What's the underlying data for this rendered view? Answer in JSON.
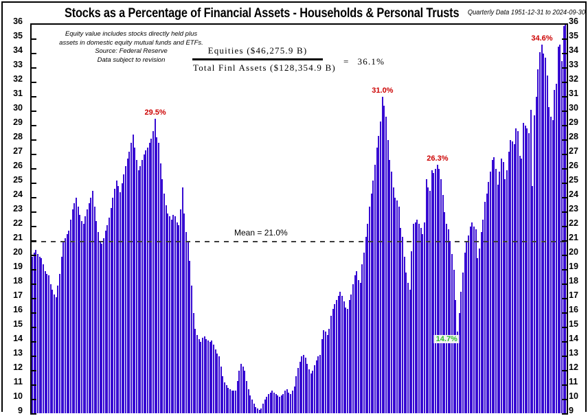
{
  "header": {
    "title": "Stocks as a Percentage of Financial Assets - Households & Personal Trusts",
    "range_note": "Quarterly Data 1951-12-31 to 2024-09-30"
  },
  "notes": {
    "lines": [
      "Equity value includes stocks directly held plus",
      "assets in domestic equity mutual funds and ETFs.",
      "Source: Federal Reserve",
      "Data subject to revision"
    ]
  },
  "formula": {
    "numerator": "Equities ($46,275.9 B)",
    "denominator": "Total Finl Assets ($128,354.9 B)",
    "equals": "=",
    "result": "36.1%"
  },
  "chart_data": {
    "type": "bar",
    "title": "Stocks as a Percentage of Financial Assets - Households & Personal Trusts",
    "frequency": "quarterly",
    "x_start": "1951-12-31",
    "x_end": "2024-09-30",
    "ylim": [
      9,
      36
    ],
    "grid": false,
    "bar_color": "#370bd2",
    "y_ticks": [
      36,
      35,
      34,
      33,
      32,
      31,
      30,
      29,
      28,
      27,
      26,
      25,
      24,
      23,
      22,
      21,
      20,
      19,
      18,
      17,
      16,
      15,
      14,
      13,
      12,
      11,
      10,
      9
    ],
    "mean_line": {
      "value": 21.0,
      "label": "Mean = 21.0%"
    },
    "annotations": [
      {
        "index": 67,
        "value": 29.5,
        "label": "29.5%",
        "color": "#cc0000",
        "placement": "above",
        "boxed": false
      },
      {
        "index": 191,
        "value": 31.0,
        "label": "31.0%",
        "color": "#cc0000",
        "placement": "above",
        "boxed": false
      },
      {
        "index": 221,
        "value": 26.3,
        "label": "26.3%",
        "color": "#cc0000",
        "placement": "above",
        "boxed": false
      },
      {
        "index": 278,
        "value": 34.6,
        "label": "34.6%",
        "color": "#cc0000",
        "placement": "above",
        "boxed": false
      },
      {
        "index": 232,
        "value": 14.7,
        "label": "14.7%",
        "color": "#2db82d",
        "placement": "below",
        "boxed": true
      }
    ],
    "values": [
      19.9,
      20.2,
      20.4,
      20.1,
      19.9,
      19.8,
      19.4,
      18.9,
      18.7,
      18.6,
      18.0,
      17.6,
      17.3,
      17.1,
      17.9,
      18.7,
      19.9,
      21.0,
      21.2,
      21.5,
      21.7,
      22.5,
      23.2,
      23.6,
      24.0,
      23.4,
      22.8,
      22.4,
      22.2,
      22.7,
      23.2,
      23.6,
      24.0,
      24.5,
      23.4,
      22.4,
      21.6,
      21.0,
      20.8,
      21.2,
      21.7,
      22.1,
      22.6,
      23.3,
      24.0,
      24.6,
      25.2,
      24.8,
      24.4,
      25.0,
      25.6,
      26.2,
      26.7,
      27.2,
      27.8,
      28.4,
      27.5,
      26.6,
      25.9,
      26.2,
      26.6,
      27.0,
      27.3,
      27.5,
      27.8,
      28.1,
      28.6,
      29.5,
      28.2,
      27.8,
      26.4,
      25.3,
      24.3,
      23.5,
      22.9,
      22.7,
      22.5,
      22.8,
      22.7,
      22.3,
      22.1,
      23.2,
      24.7,
      22.9,
      21.6,
      21.0,
      19.6,
      17.9,
      16.0,
      14.9,
      14.5,
      14.2,
      14.0,
      14.3,
      14.4,
      14.2,
      14.1,
      14.0,
      14.1,
      13.8,
      13.5,
      13.2,
      13.0,
      12.3,
      11.6,
      11.2,
      11.0,
      10.8,
      10.7,
      10.6,
      10.6,
      10.6,
      11.3,
      12.0,
      12.5,
      12.3,
      12.0,
      11.3,
      10.7,
      10.3,
      10.0,
      9.7,
      9.5,
      9.4,
      9.3,
      9.4,
      9.7,
      10.0,
      10.2,
      10.4,
      10.5,
      10.6,
      10.5,
      10.4,
      10.3,
      10.2,
      10.3,
      10.4,
      10.6,
      10.7,
      10.5,
      10.4,
      10.6,
      10.9,
      11.6,
      12.2,
      12.6,
      13.0,
      13.1,
      12.9,
      12.5,
      12.1,
      11.8,
      12.0,
      12.4,
      12.7,
      13.0,
      13.1,
      14.2,
      14.8,
      14.7,
      14.5,
      14.9,
      15.8,
      16.3,
      16.6,
      16.9,
      17.2,
      17.5,
      17.2,
      16.8,
      16.4,
      16.3,
      16.9,
      17.3,
      18.0,
      18.6,
      18.9,
      18.3,
      18.1,
      19.4,
      20.2,
      21.3,
      22.2,
      23.4,
      24.3,
      25.2,
      26.3,
      27.5,
      28.3,
      29.3,
      31.0,
      30.4,
      29.6,
      28.0,
      26.6,
      25.8,
      24.7,
      24.0,
      23.8,
      23.4,
      21.9,
      21.3,
      19.9,
      18.8,
      18.1,
      17.6,
      20.3,
      22.2,
      22.3,
      22.5,
      22.2,
      21.9,
      21.5,
      22.3,
      25.3,
      24.7,
      24.5,
      25.9,
      25.7,
      26.0,
      26.3,
      26.0,
      25.3,
      24.2,
      23.0,
      22.2,
      21.8,
      21.0,
      20.1,
      19.0,
      16.9,
      14.7,
      16.0,
      17.5,
      18.8,
      20.2,
      20.9,
      21.4,
      22.0,
      22.3,
      22.0,
      21.8,
      19.8,
      20.5,
      21.6,
      22.5,
      23.7,
      24.3,
      25.1,
      25.8,
      26.6,
      26.8,
      26.0,
      24.9,
      25.8,
      26.7,
      26.5,
      25.3,
      25.9,
      27.2,
      28.0,
      27.9,
      27.7,
      28.8,
      28.6,
      26.9,
      26.7,
      29.2,
      29.0,
      28.8,
      28.5,
      30.1,
      24.8,
      29.7,
      31.0,
      32.9,
      34.1,
      34.6,
      34.0,
      33.7,
      32.5,
      30.3,
      29.6,
      29.4,
      31.5,
      31.9,
      34.5,
      34.6,
      33.5,
      35.9,
      36.1
    ]
  }
}
